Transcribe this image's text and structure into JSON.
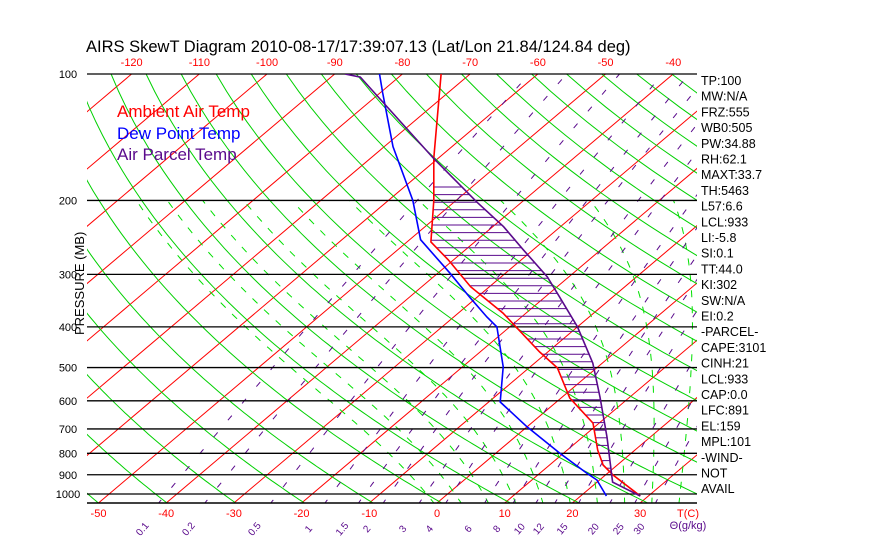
{
  "chart_data": {
    "type": "line",
    "title": "AIRS SkewT Diagram 2010-08-17/17:39:07.13 (Lat/Lon 21.84/124.84 deg)",
    "ylabel": "PRESSURE (MB)",
    "xlabel": "T(C)",
    "mixing_ratio_unit": "Θ(g/kg)",
    "pressure_ticks": [
      100,
      200,
      300,
      400,
      500,
      600,
      700,
      800,
      900,
      1000
    ],
    "bottom_temp_ticks": [
      -50,
      -40,
      -30,
      -20,
      -10,
      0,
      10,
      20,
      30
    ],
    "top_temp_ticks": [
      -120,
      -110,
      -100,
      -90,
      -80,
      -70,
      -60,
      -50,
      -40
    ],
    "mixing_ratio_ticks": [
      "0.1",
      "0.2",
      "0.5",
      "1",
      "1.5",
      "2",
      "3",
      "4",
      "6",
      "8",
      "10",
      "12",
      "15",
      "20",
      "25",
      "30"
    ],
    "legend": [
      "Ambient Air Temp",
      "Dew Point Temp",
      "Air Parcel Temp"
    ],
    "legend_placement": "top-left",
    "ylim": [
      1050,
      100
    ],
    "colors": {
      "ambient": "#ff0000",
      "dewpoint": "#0000ff",
      "parcel": "#5a0a8c",
      "dry_adiabat": "#00d000",
      "moist_adiabat": "#00e000",
      "mixing_ratio": "#5a0a8c",
      "isobar": "#000000"
    },
    "series": [
      {
        "name": "Ambient Air Temp",
        "points": [
          [
            1011,
            28.8
          ],
          [
            901,
            21.1
          ],
          [
            853,
            17.9
          ],
          [
            786,
            14.5
          ],
          [
            678,
            9.1
          ],
          [
            591,
            1.3
          ],
          [
            501,
            -5.8
          ],
          [
            459,
            -11.2
          ],
          [
            371,
            -23.4
          ],
          [
            321,
            -32.8
          ],
          [
            277,
            -40.8
          ],
          [
            251,
            -46.5
          ],
          [
            200,
            -53.3
          ],
          [
            158.5,
            -60.7
          ],
          [
            100,
            -74.3
          ]
        ]
      },
      {
        "name": "Dew Point Temp",
        "points": [
          [
            1011,
            23.8
          ],
          [
            926,
            19.6
          ],
          [
            892,
            16.9
          ],
          [
            799,
            9.4
          ],
          [
            692,
            0.0
          ],
          [
            604,
            -8.3
          ],
          [
            498,
            -14.0
          ],
          [
            400,
            -21.9
          ],
          [
            379,
            -25.1
          ],
          [
            340,
            -31.1
          ],
          [
            298,
            -38.2
          ],
          [
            248,
            -48.4
          ],
          [
            200,
            -56.4
          ],
          [
            149,
            -68.7
          ],
          [
            111,
            -79.6
          ],
          [
            100,
            -83.4
          ]
        ]
      },
      {
        "name": "Air Parcel Temp",
        "points": [
          [
            1011,
            28.8
          ],
          [
            937,
            22.3
          ],
          [
            732,
            13.6
          ],
          [
            588,
            5.6
          ],
          [
            488,
            -1.4
          ],
          [
            400,
            -10.0
          ],
          [
            340,
            -17.8
          ],
          [
            304,
            -23.2
          ],
          [
            262,
            -31.5
          ],
          [
            231,
            -38.4
          ],
          [
            202,
            -46.6
          ],
          [
            158.5,
            -60.8
          ],
          [
            101.7,
            -85.7
          ],
          [
            100,
            -88.5
          ]
        ]
      }
    ]
  },
  "stats": [
    "TP:100",
    "MW:N/A",
    "FRZ:555",
    "WB0:505",
    "PW:34.88",
    "RH:62.1",
    "MAXT:33.7",
    "TH:5463",
    "L57:6.6",
    "LCL:933",
    "LI:-5.8",
    "SI:0.1",
    "TT:44.0",
    "KI:302",
    "SW:N/A",
    "EI:0.2",
    "-PARCEL-",
    "CAPE:3101",
    "CINH:21",
    "LCL:933",
    "CAP:0.0",
    "LFC:891",
    "EL:159",
    "MPL:101",
    "-WIND-",
    "NOT",
    "AVAIL"
  ]
}
